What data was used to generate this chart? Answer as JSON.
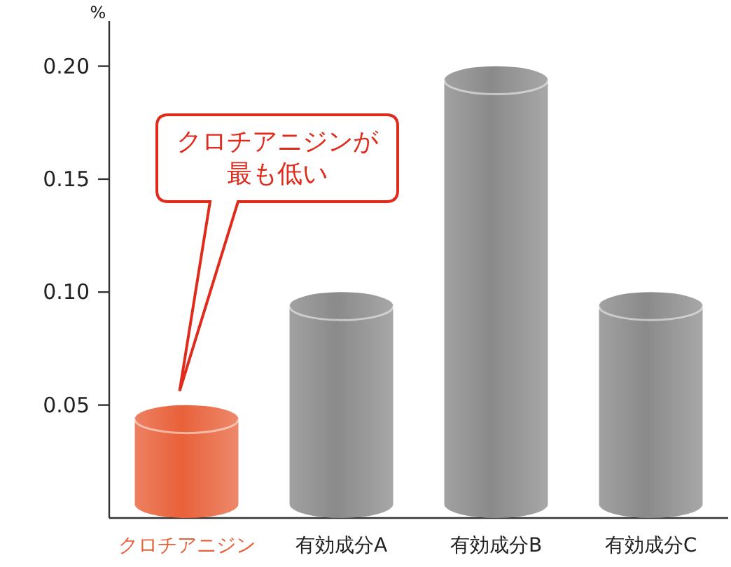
{
  "chart_data": {
    "type": "bar",
    "ylabel": "%",
    "categories": [
      "クロチアニジン",
      "有効成分A",
      "有効成分B",
      "有効成分C"
    ],
    "values": [
      0.05,
      0.1,
      0.2,
      0.1
    ],
    "colors": [
      "#e8613a",
      "#8a8a8a",
      "#8a8a8a",
      "#8a8a8a"
    ],
    "ylim": [
      0,
      0.22
    ],
    "yticks": [
      {
        "value": 0.05,
        "label": "0.05"
      },
      {
        "value": 0.1,
        "label": "0.10"
      },
      {
        "value": 0.15,
        "label": "0.15"
      },
      {
        "value": 0.2,
        "label": "0.20"
      }
    ],
    "grid": false,
    "annotations": [
      "クロチアニジンが最も低い"
    ]
  }
}
